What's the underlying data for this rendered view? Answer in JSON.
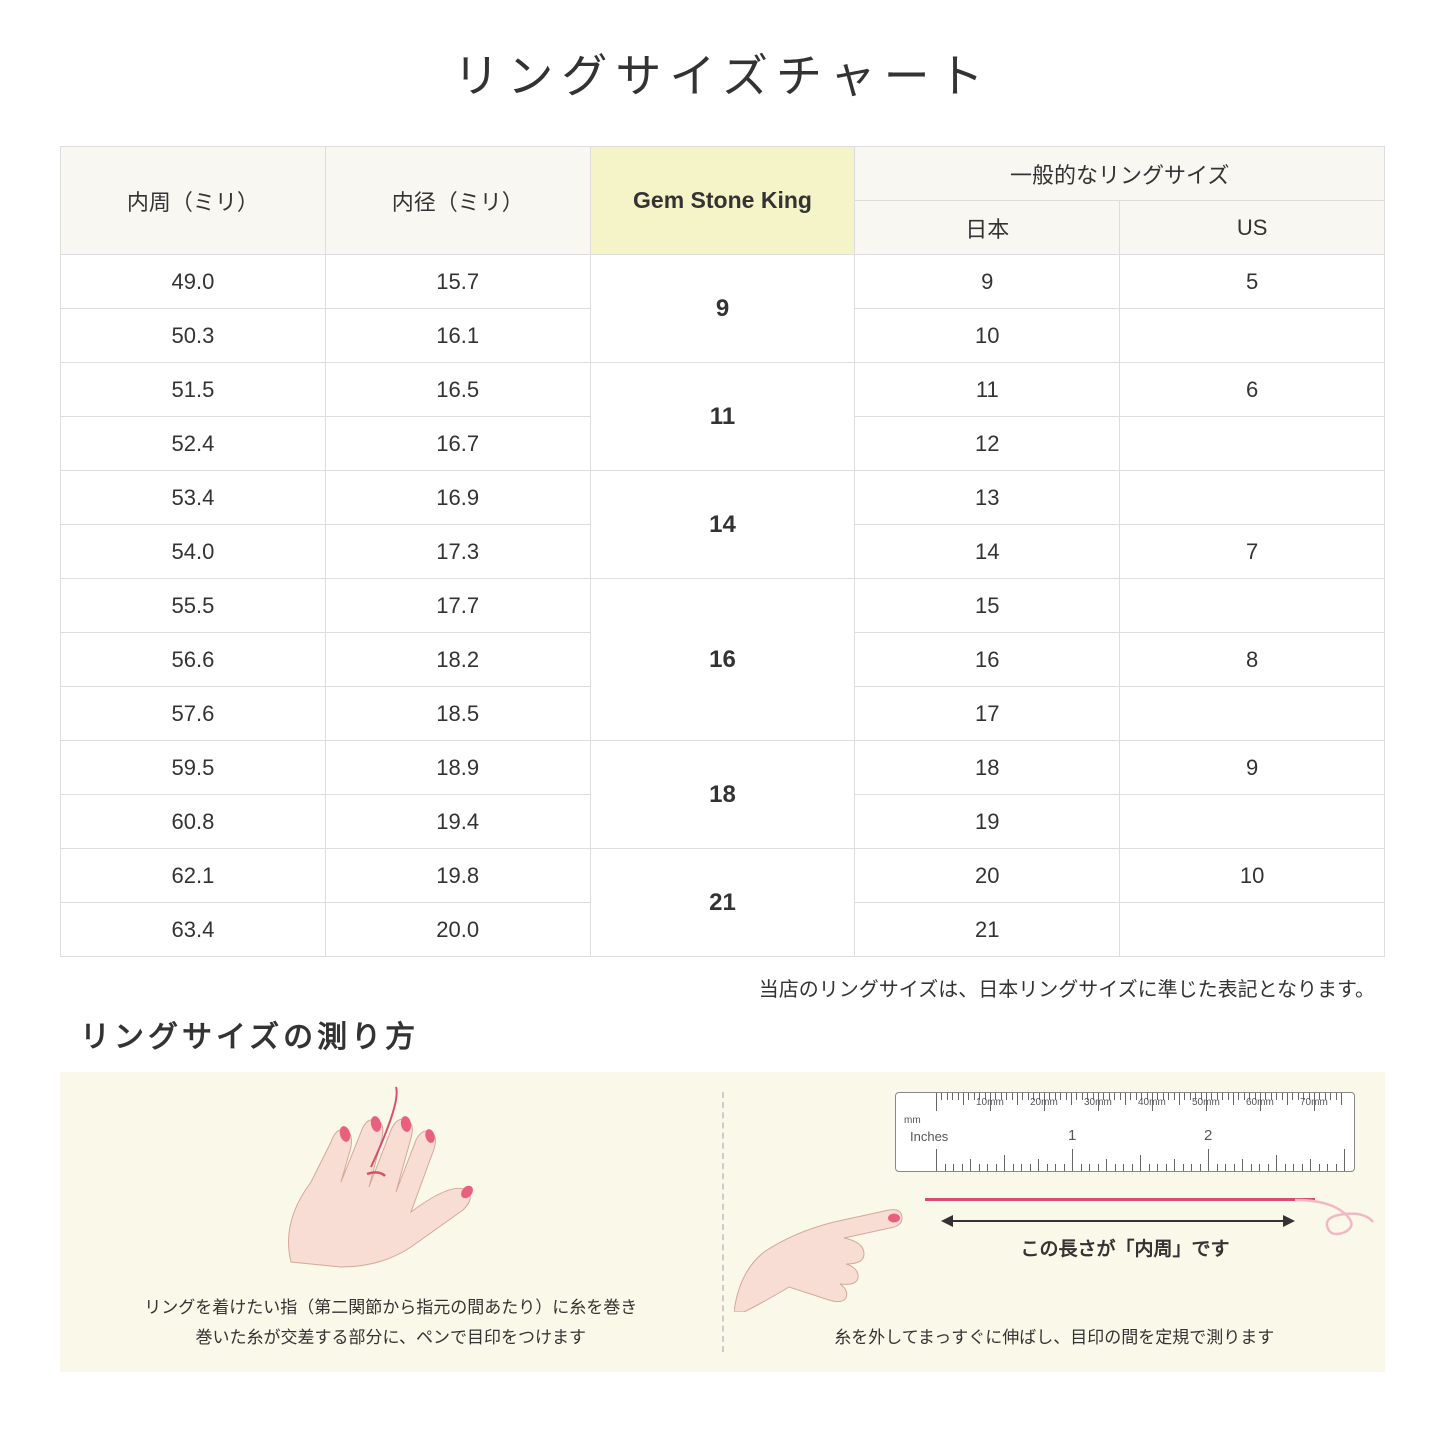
{
  "title": "リングサイズチャート",
  "headers": {
    "circumference": "内周（ミリ）",
    "diameter": "内径（ミリ）",
    "gsk": "Gem Stone King",
    "general": "一般的なリングサイズ",
    "japan": "日本",
    "us": "US"
  },
  "rows": [
    {
      "c": "49.0",
      "d": "15.7",
      "jp": "9",
      "us": "5"
    },
    {
      "c": "50.3",
      "d": "16.1",
      "jp": "10",
      "us": ""
    },
    {
      "c": "51.5",
      "d": "16.5",
      "jp": "11",
      "us": "6"
    },
    {
      "c": "52.4",
      "d": "16.7",
      "jp": "12",
      "us": ""
    },
    {
      "c": "53.4",
      "d": "16.9",
      "jp": "13",
      "us": ""
    },
    {
      "c": "54.0",
      "d": "17.3",
      "jp": "14",
      "us": "7"
    },
    {
      "c": "55.5",
      "d": "17.7",
      "jp": "15",
      "us": ""
    },
    {
      "c": "56.6",
      "d": "18.2",
      "jp": "16",
      "us": "8"
    },
    {
      "c": "57.6",
      "d": "18.5",
      "jp": "17",
      "us": ""
    },
    {
      "c": "59.5",
      "d": "18.9",
      "jp": "18",
      "us": "9"
    },
    {
      "c": "60.8",
      "d": "19.4",
      "jp": "19",
      "us": ""
    },
    {
      "c": "62.1",
      "d": "19.8",
      "jp": "20",
      "us": "10"
    },
    {
      "c": "63.4",
      "d": "20.0",
      "jp": "21",
      "us": ""
    }
  ],
  "gsk_groups": [
    {
      "label": "9",
      "span": 2
    },
    {
      "label": "11",
      "span": 2
    },
    {
      "label": "14",
      "span": 2
    },
    {
      "label": "16",
      "span": 3
    },
    {
      "label": "18",
      "span": 2
    },
    {
      "label": "21",
      "span": 2
    }
  ],
  "note": "当店のリングサイズは、日本リングサイズに準じた表記となります。",
  "subtitle": "リングサイズの測り方",
  "guide": {
    "left_text_1": "リングを着けたい指（第二関節から指元の間あたり）に糸を巻き",
    "left_text_2": "巻いた糸が交差する部分に、ペンで目印をつけます",
    "right_arrow_label": "この長さが「内周」です",
    "right_text": "糸を外してまっすぐに伸ばし、目印の間を定規で測ります",
    "ruler_mm": "mm",
    "ruler_inches": "Inches",
    "mm_marks": [
      "10mm",
      "20mm",
      "30mm",
      "40mm",
      "50mm",
      "60mm",
      "70mm"
    ],
    "in_marks": [
      "1",
      "2"
    ]
  },
  "colors": {
    "header_bg": "#f8f7f2",
    "gsk_bg": "#f5f3c8",
    "guide_bg": "#faf8e8",
    "border": "#dddddd",
    "hand_fill": "#f7ddd4",
    "nail": "#e8607d",
    "thread": "#d94f6b"
  }
}
